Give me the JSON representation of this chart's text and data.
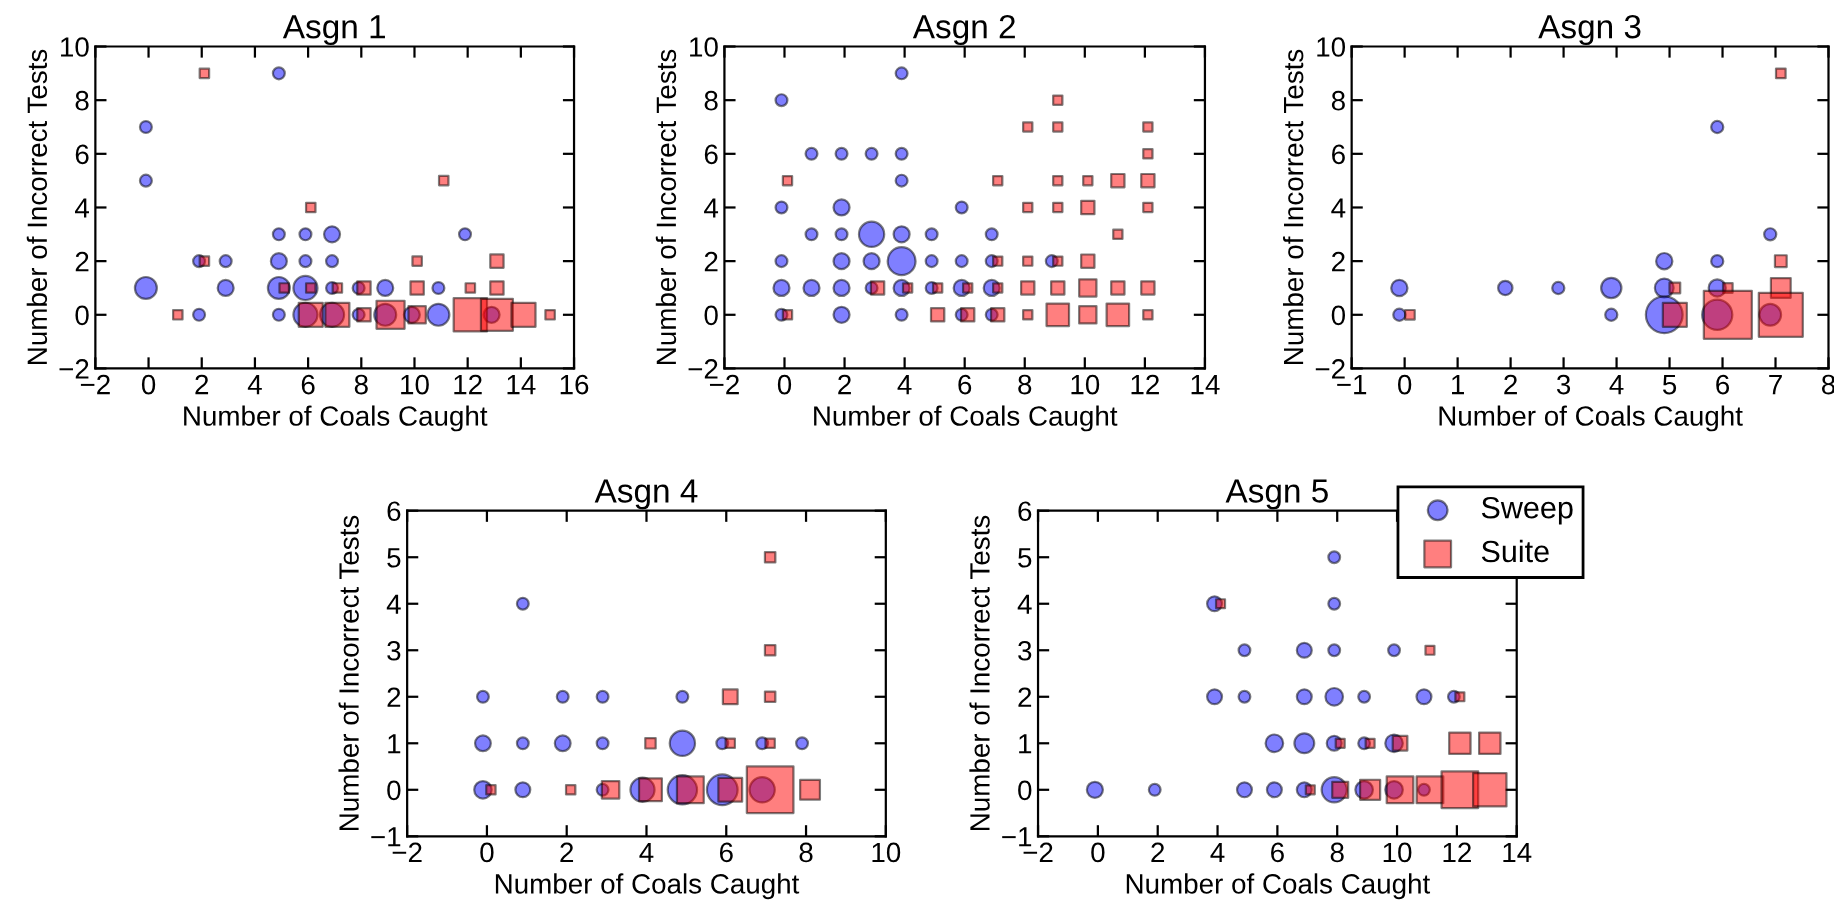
{
  "chart_data": [
    {
      "type": "bubble",
      "title": "Asgn 1",
      "xlabel": "Number of Coals Caught",
      "ylabel": "Number of Incorrect Tests",
      "xlim": [
        -2,
        16
      ],
      "xticks": [
        -2,
        0,
        2,
        4,
        6,
        8,
        10,
        12,
        14,
        16
      ],
      "ylim": [
        -2,
        10
      ],
      "yticks": [
        -2,
        0,
        2,
        4,
        6,
        8,
        10
      ],
      "grid": false,
      "series": [
        {
          "marker": "circle",
          "color": "#0000ff",
          "x": [
            -0.1,
            -0.1,
            -0.1,
            1.9,
            1.9,
            2.9,
            2.9,
            4.9,
            4.9,
            4.9,
            4.9,
            4.9,
            5.9,
            5.9,
            5.9,
            5.9,
            6.9,
            6.9,
            6.9,
            6.9,
            7.9,
            7.9,
            8.9,
            8.9,
            9.9,
            10.9,
            10.9,
            11.9,
            12.9
          ],
          "values": [
            7,
            5,
            1,
            2,
            0,
            2,
            1,
            9,
            3,
            2,
            1,
            0,
            3,
            2,
            1,
            0,
            3,
            2,
            1,
            0,
            1,
            0,
            1,
            0,
            0,
            1,
            0,
            3,
            0
          ],
          "sizes": [
            0.1,
            0.1,
            0.34,
            0.1,
            0.1,
            0.1,
            0.18,
            0.1,
            0.1,
            0.18,
            0.34,
            0.1,
            0.1,
            0.1,
            0.41,
            0.41,
            0.18,
            0.1,
            0.1,
            0.41,
            0.1,
            0.1,
            0.18,
            0.34,
            0.18,
            0.1,
            0.34,
            0.1,
            0.18
          ]
        },
        {
          "marker": "square",
          "color": "#ff0000",
          "x": [
            1.1,
            2.1,
            2.1,
            5.1,
            6.1,
            6.1,
            6.1,
            7.1,
            7.1,
            8.1,
            8.1,
            9.1,
            10.1,
            10.1,
            10.1,
            11.1,
            12.1,
            12.1,
            13.1,
            13.1,
            13.1,
            14.1,
            15.1
          ],
          "values": [
            0,
            9,
            2,
            1,
            4,
            1,
            0,
            1,
            0,
            1,
            0,
            0,
            2,
            1,
            0,
            5,
            1,
            0,
            2,
            1,
            0,
            0,
            0
          ],
          "sizes": [
            0.08,
            0.08,
            0.08,
            0.08,
            0.08,
            0.08,
            0.52,
            0.08,
            0.52,
            0.16,
            0.16,
            0.71,
            0.08,
            0.16,
            0.27,
            0.08,
            0.08,
            1,
            0.16,
            0.16,
            0.92,
            0.52,
            0.08
          ]
        }
      ]
    },
    {
      "type": "bubble",
      "title": "Asgn 2",
      "xlabel": "Number of Coals Caught",
      "ylabel": "Number of Incorrect Tests",
      "xlim": [
        -2,
        14
      ],
      "xticks": [
        -2,
        0,
        2,
        4,
        6,
        8,
        10,
        12,
        14
      ],
      "ylim": [
        -2,
        10
      ],
      "yticks": [
        -2,
        0,
        2,
        4,
        6,
        8,
        10
      ],
      "grid": false,
      "series": [
        {
          "marker": "circle",
          "color": "#0000ff",
          "x": [
            -0.1,
            -0.1,
            -0.1,
            -0.1,
            -0.1,
            0.9,
            0.9,
            0.9,
            1.9,
            1.9,
            1.9,
            1.9,
            1.9,
            1.9,
            2.9,
            2.9,
            2.9,
            2.9,
            3.9,
            3.9,
            3.9,
            3.9,
            3.9,
            3.9,
            3.9,
            4.9,
            4.9,
            4.9,
            5.9,
            5.9,
            5.9,
            5.9,
            6.9,
            6.9,
            6.9,
            6.9,
            8.9
          ],
          "values": [
            8,
            4,
            2,
            1,
            0,
            6,
            3,
            1,
            6,
            4,
            3,
            2,
            1,
            0,
            6,
            3,
            2,
            1,
            9,
            6,
            5,
            3,
            2,
            1,
            0,
            3,
            2,
            1,
            4,
            2,
            1,
            0,
            3,
            2,
            1,
            0,
            2
          ],
          "sizes": [
            0.18,
            0.18,
            0.18,
            0.33,
            0.18,
            0.18,
            0.18,
            0.33,
            0.18,
            0.33,
            0.18,
            0.33,
            0.33,
            0.33,
            0.18,
            0.82,
            0.33,
            0.18,
            0.18,
            0.18,
            0.18,
            0.33,
            1,
            0.33,
            0.18,
            0.18,
            0.18,
            0.18,
            0.18,
            0.18,
            0.33,
            0.18,
            0.18,
            0.18,
            0.33,
            0.18,
            0.18
          ]
        },
        {
          "marker": "square",
          "color": "#ff0000",
          "x": [
            0.1,
            0.1,
            3.1,
            4.1,
            5.1,
            5.1,
            6.1,
            6.1,
            7.1,
            7.1,
            7.1,
            7.1,
            8.1,
            8.1,
            8.1,
            8.1,
            8.1,
            9.1,
            9.1,
            9.1,
            9.1,
            9.1,
            9.1,
            9.1,
            10.1,
            10.1,
            10.1,
            10.1,
            10.1,
            11.1,
            11.1,
            11.1,
            11.1,
            12.1,
            12.1,
            12.1,
            12.1,
            12.1,
            12.1
          ],
          "values": [
            5,
            0,
            1,
            1,
            1,
            0,
            1,
            0,
            5,
            2,
            1,
            0,
            7,
            4,
            2,
            1,
            0,
            8,
            7,
            5,
            4,
            2,
            1,
            0,
            5,
            4,
            2,
            1,
            0,
            5,
            3,
            1,
            0,
            7,
            6,
            5,
            4,
            1,
            0
          ],
          "sizes": [
            0.14,
            0.14,
            0.29,
            0.14,
            0.14,
            0.29,
            0.14,
            0.29,
            0.14,
            0.14,
            0.14,
            0.29,
            0.14,
            0.14,
            0.14,
            0.29,
            0.14,
            0.14,
            0.14,
            0.14,
            0.14,
            0.14,
            0.29,
            0.83,
            0.14,
            0.29,
            0.29,
            0.49,
            0.49,
            0.29,
            0.14,
            0.29,
            0.83,
            0.14,
            0.14,
            0.29,
            0.14,
            0.29,
            0.14
          ]
        }
      ]
    },
    {
      "type": "bubble",
      "title": "Asgn 3",
      "xlabel": "Number of Coals Caught",
      "ylabel": "Number of Incorrect Tests",
      "xlim": [
        -1,
        8
      ],
      "xticks": [
        -1,
        0,
        1,
        2,
        3,
        4,
        5,
        6,
        7,
        8
      ],
      "ylim": [
        -2,
        10
      ],
      "yticks": [
        -2,
        0,
        2,
        4,
        6,
        8,
        10
      ],
      "grid": false,
      "series": [
        {
          "marker": "circle",
          "color": "#0000ff",
          "x": [
            -0.1,
            -0.1,
            1.9,
            2.9,
            3.9,
            3.9,
            4.9,
            4.9,
            4.9,
            5.9,
            5.9,
            5.9,
            5.9,
            6.9,
            6.9
          ],
          "values": [
            1,
            0,
            1,
            1,
            1,
            0,
            2,
            1,
            0,
            7,
            2,
            1,
            0,
            3,
            0
          ],
          "sizes": [
            0.09,
            0.05,
            0.07,
            0.05,
            0.14,
            0.05,
            0.09,
            0.12,
            0.46,
            0.05,
            0.05,
            0.1,
            0.31,
            0.05,
            0.16
          ]
        },
        {
          "marker": "square",
          "color": "#ff0000",
          "x": [
            0.1,
            5.1,
            5.1,
            6.1,
            6.1,
            7.1,
            7.1,
            7.1,
            7.1
          ],
          "values": [
            0,
            1,
            0,
            1,
            0,
            9,
            2,
            1,
            0
          ],
          "sizes": [
            0.04,
            0.05,
            0.25,
            0.04,
            1,
            0.04,
            0.06,
            0.17,
            0.84
          ]
        }
      ]
    },
    {
      "type": "bubble",
      "title": "Asgn 4",
      "xlabel": "Number of Coals Caught",
      "ylabel": "Number of Incorrect Tests",
      "xlim": [
        -2,
        10
      ],
      "xticks": [
        -2,
        0,
        2,
        4,
        6,
        8,
        10
      ],
      "ylim": [
        -1,
        6
      ],
      "yticks": [
        -1,
        0,
        1,
        2,
        3,
        4,
        5,
        6
      ],
      "grid": false,
      "series": [
        {
          "marker": "circle",
          "color": "#0000ff",
          "x": [
            -0.1,
            -0.1,
            -0.1,
            0.9,
            0.9,
            0.9,
            1.9,
            1.9,
            2.9,
            2.9,
            2.9,
            3.9,
            4.9,
            4.9,
            4.9,
            5.9,
            5.9,
            6.9,
            6.9,
            7.9
          ],
          "values": [
            2,
            1,
            0,
            4,
            1,
            0,
            2,
            1,
            2,
            1,
            0,
            0,
            2,
            1,
            0,
            1,
            0,
            1,
            0,
            1
          ],
          "sizes": [
            0.05,
            0.09,
            0.11,
            0.05,
            0.05,
            0.08,
            0.05,
            0.09,
            0.05,
            0.05,
            0.05,
            0.21,
            0.05,
            0.23,
            0.31,
            0.05,
            0.34,
            0.05,
            0.23,
            0.05
          ]
        },
        {
          "marker": "square",
          "color": "#ff0000",
          "x": [
            0.1,
            2.1,
            3.1,
            4.1,
            4.1,
            5.1,
            6.1,
            6.1,
            6.1,
            7.1,
            7.1,
            7.1,
            7.1,
            7.1,
            8.1
          ],
          "values": [
            0,
            0,
            0,
            1,
            0,
            0,
            2,
            1,
            0,
            5,
            3,
            2,
            1,
            0,
            0
          ],
          "sizes": [
            0.04,
            0.04,
            0.14,
            0.05,
            0.24,
            0.33,
            0.1,
            0.04,
            0.26,
            0.05,
            0.05,
            0.05,
            0.04,
            1,
            0.18
          ]
        }
      ]
    },
    {
      "type": "bubble",
      "title": "Asgn 5",
      "xlabel": "Number of Coals Caught",
      "ylabel": "Number of Incorrect Tests",
      "xlim": [
        -2,
        14
      ],
      "xticks": [
        -2,
        0,
        2,
        4,
        6,
        8,
        10,
        12,
        14
      ],
      "ylim": [
        -1,
        6
      ],
      "yticks": [
        -1,
        0,
        1,
        2,
        3,
        4,
        5,
        6
      ],
      "grid": false,
      "legend": "top right",
      "series": [
        {
          "name": "Sweep",
          "marker": "circle",
          "color": "#0000ff",
          "x": [
            -0.1,
            1.9,
            3.9,
            3.9,
            4.9,
            4.9,
            4.9,
            5.9,
            5.9,
            6.9,
            6.9,
            6.9,
            6.9,
            7.9,
            7.9,
            7.9,
            7.9,
            7.9,
            7.9,
            8.9,
            8.9,
            8.9,
            9.9,
            9.9,
            9.9,
            10.9,
            10.9,
            11.9
          ],
          "values": [
            0,
            0,
            4,
            2,
            3,
            2,
            0,
            1,
            0,
            3,
            2,
            1,
            0,
            5,
            4,
            3,
            2,
            1,
            0,
            2,
            1,
            0,
            3,
            1,
            0,
            2,
            0,
            2
          ],
          "sizes": [
            0.15,
            0.08,
            0.13,
            0.13,
            0.08,
            0.08,
            0.13,
            0.18,
            0.13,
            0.13,
            0.13,
            0.23,
            0.13,
            0.08,
            0.08,
            0.08,
            0.18,
            0.13,
            0.37,
            0.08,
            0.08,
            0.18,
            0.08,
            0.18,
            0.18,
            0.13,
            0.08,
            0.08
          ]
        },
        {
          "name": "Suite",
          "marker": "square",
          "color": "#ff0000",
          "x": [
            4.1,
            7.1,
            8.1,
            8.1,
            9.1,
            9.1,
            10.1,
            10.1,
            11.1,
            11.1,
            12.1,
            12.1,
            12.1,
            13.1,
            13.1
          ],
          "values": [
            4,
            0,
            1,
            0,
            1,
            0,
            1,
            0,
            3,
            0,
            2,
            1,
            0,
            1,
            0
          ],
          "sizes": [
            0.06,
            0.06,
            0.06,
            0.19,
            0.06,
            0.3,
            0.16,
            0.53,
            0.06,
            0.53,
            0.06,
            0.34,
            1,
            0.34,
            0.83
          ]
        }
      ]
    }
  ]
}
